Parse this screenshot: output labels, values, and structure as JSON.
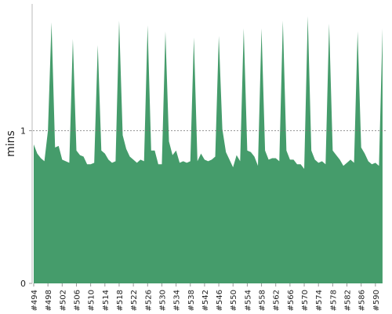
{
  "chart_data": {
    "type": "area",
    "y_label": "mins",
    "categories": [
      "#494",
      null,
      null,
      null,
      "#498",
      null,
      null,
      null,
      "#502",
      null,
      null,
      null,
      "#506",
      null,
      null,
      null,
      "#510",
      null,
      null,
      null,
      "#514",
      null,
      null,
      null,
      "#518",
      null,
      null,
      null,
      "#522",
      null,
      null,
      null,
      "#526",
      null,
      null,
      null,
      "#530",
      null,
      null,
      null,
      "#534",
      null,
      null,
      null,
      "#538",
      null,
      null,
      null,
      "#542",
      null,
      null,
      null,
      "#546",
      null,
      null,
      null,
      "#550",
      null,
      null,
      null,
      "#554",
      null,
      null,
      null,
      "#558",
      null,
      null,
      null,
      "#562",
      null,
      null,
      null,
      "#566",
      null,
      null,
      null,
      "#570",
      null,
      null,
      null,
      "#574",
      null,
      null,
      null,
      "#578",
      null,
      null,
      null,
      "#582",
      null,
      null,
      null,
      "#586",
      null,
      null,
      null,
      "#590",
      null,
      null
    ],
    "values": [
      0.91,
      0.85,
      0.82,
      0.8,
      1.0,
      1.71,
      0.89,
      0.9,
      0.81,
      0.8,
      0.79,
      1.6,
      0.87,
      0.84,
      0.83,
      0.78,
      0.78,
      0.79,
      1.56,
      0.87,
      0.85,
      0.81,
      0.79,
      0.8,
      1.72,
      0.97,
      0.88,
      0.83,
      0.81,
      0.79,
      0.81,
      0.8,
      1.69,
      0.87,
      0.87,
      0.78,
      0.78,
      1.65,
      0.93,
      0.84,
      0.87,
      0.79,
      0.8,
      0.79,
      0.8,
      1.61,
      0.8,
      0.85,
      0.81,
      0.8,
      0.81,
      0.83,
      1.62,
      1.01,
      0.86,
      0.81,
      0.76,
      0.84,
      0.8,
      1.67,
      0.87,
      0.86,
      0.83,
      0.77,
      1.67,
      0.87,
      0.81,
      0.82,
      0.82,
      0.8,
      1.72,
      0.87,
      0.81,
      0.81,
      0.78,
      0.78,
      0.75,
      1.75,
      0.87,
      0.81,
      0.79,
      0.8,
      0.78,
      1.7,
      0.87,
      0.84,
      0.81,
      0.77,
      0.79,
      0.81,
      0.79,
      1.65,
      0.89,
      0.85,
      0.8,
      0.78,
      0.79,
      0.77,
      1.67
    ],
    "color": "#459c6b",
    "ylim": [
      0,
      1.83
    ],
    "yticks": [
      0,
      1
    ],
    "grid": true
  }
}
